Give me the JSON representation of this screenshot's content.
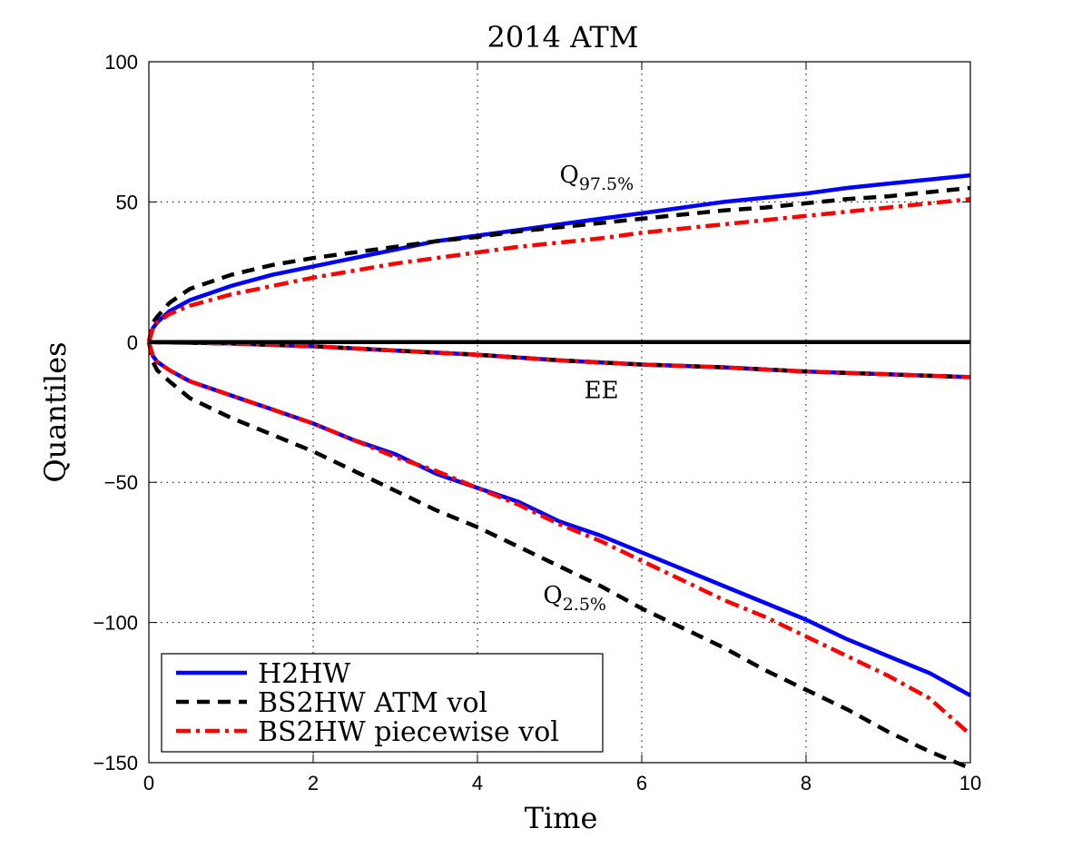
{
  "chart_data": {
    "type": "line",
    "title": "2014 ATM",
    "xlabel": "Time",
    "ylabel": "Quantiles",
    "xlim": [
      0,
      10
    ],
    "ylim": [
      -150,
      100
    ],
    "xticks": [
      0,
      2,
      4,
      6,
      8,
      10
    ],
    "yticks": [
      100,
      50,
      0,
      -50,
      -100,
      -150
    ],
    "xtick_labels": [
      "0",
      "2",
      "4",
      "6",
      "8",
      "10"
    ],
    "ytick_labels": [
      "100",
      "50",
      "0",
      "−50",
      "−100",
      "−150"
    ],
    "grid": true,
    "legend_position": "bottom-left",
    "legend": [
      {
        "label": "H2HW",
        "color": "#0000ff",
        "style": "solid"
      },
      {
        "label": "BS2HW ATM vol",
        "color": "#000000",
        "style": "dashed"
      },
      {
        "label": "BS2HW piecewise vol",
        "color": "#ff0000",
        "style": "dashdot"
      }
    ],
    "annotations": [
      {
        "base": "Q",
        "sub": "97.5%",
        "x": 5.0,
        "y": 57
      },
      {
        "text": "EE",
        "x": 5.3,
        "y": -20
      },
      {
        "base": "Q",
        "sub": "2.5%",
        "x": 4.8,
        "y": -93
      }
    ],
    "series": [
      {
        "key": "h2hw",
        "color": "#0000ff",
        "style": "solid",
        "curves": [
          {
            "x": [
              0,
              0.05,
              0.1,
              0.25,
              0.5,
              1,
              1.5,
              2,
              2.5,
              3,
              3.5,
              4,
              4.5,
              5,
              5.5,
              6,
              6.5,
              7,
              7.5,
              8,
              8.5,
              9,
              9.5,
              10
            ],
            "y": [
              0,
              5,
              7,
              11,
              15,
              20,
              24,
              27,
              30,
              33,
              36,
              38,
              40,
              42,
              44,
              46,
              48,
              50,
              51.5,
              53,
              55,
              56.5,
              58,
              59.5
            ]
          },
          {
            "x": [
              0,
              1,
              2,
              3,
              4,
              5,
              6,
              7,
              8,
              9,
              10
            ],
            "y": [
              0,
              -0.5,
              -1.5,
              -3,
              -4.5,
              -6.5,
              -8,
              -9,
              -10.5,
              -11.5,
              -12.5
            ]
          },
          {
            "x": [
              0,
              0.05,
              0.1,
              0.25,
              0.5,
              1,
              1.5,
              2,
              2.5,
              3,
              3.5,
              4,
              4.5,
              5,
              5.5,
              6,
              6.5,
              7,
              7.5,
              8,
              8.5,
              9,
              9.5,
              10
            ],
            "y": [
              0,
              -5,
              -7,
              -10,
              -14,
              -19,
              -24,
              -29,
              -35,
              -40,
              -47,
              -52,
              -57,
              -64,
              -69,
              -75,
              -81,
              -87,
              -93,
              -99,
              -106,
              -112,
              -118,
              -126
            ]
          }
        ]
      },
      {
        "key": "bs2hw_atm",
        "color": "#000000",
        "style": "dashed",
        "curves": [
          {
            "x": [
              0,
              0.05,
              0.1,
              0.25,
              0.5,
              1,
              1.5,
              2,
              2.5,
              3,
              3.5,
              4,
              4.5,
              5,
              5.5,
              6,
              6.5,
              7,
              7.5,
              8,
              8.5,
              9,
              9.5,
              10
            ],
            "y": [
              0,
              7,
              9,
              14,
              19,
              24,
              27.5,
              30,
              32,
              34,
              36,
              37.5,
              39.5,
              41,
              42.5,
              44,
              45.5,
              47,
              48,
              49.5,
              51,
              52,
              53.5,
              55
            ]
          },
          {
            "x": [
              0,
              1,
              2,
              3,
              4,
              5,
              6,
              7,
              8,
              9,
              10
            ],
            "y": [
              0,
              -0.5,
              -1.5,
              -3,
              -4.5,
              -6.5,
              -8,
              -9,
              -10.5,
              -11.5,
              -12.5
            ]
          },
          {
            "x": [
              0,
              0.05,
              0.1,
              0.25,
              0.5,
              1,
              1.5,
              2,
              2.5,
              3,
              3.5,
              4,
              4.5,
              5,
              5.5,
              6,
              6.5,
              7,
              7.5,
              8,
              8.5,
              9,
              9.5,
              10
            ],
            "y": [
              0,
              -7,
              -10,
              -14,
              -20,
              -27,
              -33,
              -39,
              -46,
              -53,
              -60,
              -66,
              -73,
              -80,
              -87,
              -95,
              -102,
              -109,
              -117,
              -124,
              -131,
              -139,
              -146,
              -152
            ]
          }
        ]
      },
      {
        "key": "bs2hw_piecewise",
        "color": "#ff0000",
        "style": "dashdot",
        "curves": [
          {
            "x": [
              0,
              0.05,
              0.1,
              0.25,
              0.5,
              1,
              1.5,
              2,
              2.5,
              3,
              3.5,
              4,
              4.5,
              5,
              5.5,
              6,
              6.5,
              7,
              7.5,
              8,
              8.5,
              9,
              9.5,
              10
            ],
            "y": [
              0,
              5,
              7,
              10,
              13,
              17,
              20,
              23,
              25.5,
              28,
              30,
              32,
              34,
              35.5,
              37,
              39,
              40.5,
              42,
              43.5,
              45,
              46.5,
              48,
              49.5,
              51
            ]
          },
          {
            "x": [
              0,
              1,
              2,
              3,
              4,
              5,
              6,
              7,
              8,
              9,
              10
            ],
            "y": [
              0,
              -0.5,
              -1.5,
              -3,
              -4.5,
              -6.5,
              -8,
              -9,
              -10.5,
              -11.5,
              -12.5
            ]
          },
          {
            "x": [
              0,
              0.05,
              0.1,
              0.25,
              0.5,
              1,
              1.5,
              2,
              2.5,
              3,
              3.5,
              4,
              4.5,
              5,
              5.5,
              6,
              6.5,
              7,
              7.5,
              8,
              8.5,
              9,
              9.5,
              10
            ],
            "y": [
              0,
              -5,
              -7,
              -10,
              -14,
              -19,
              -24,
              -29,
              -35,
              -41,
              -46,
              -52,
              -58,
              -65,
              -71,
              -78,
              -85,
              -92,
              -98,
              -105,
              -112,
              -119,
              -127,
              -140
            ]
          }
        ]
      },
      {
        "key": "zero_line",
        "color": "#000000",
        "style": "solid",
        "curves": [
          {
            "x": [
              0,
              10
            ],
            "y": [
              0,
              0
            ]
          }
        ]
      }
    ]
  }
}
